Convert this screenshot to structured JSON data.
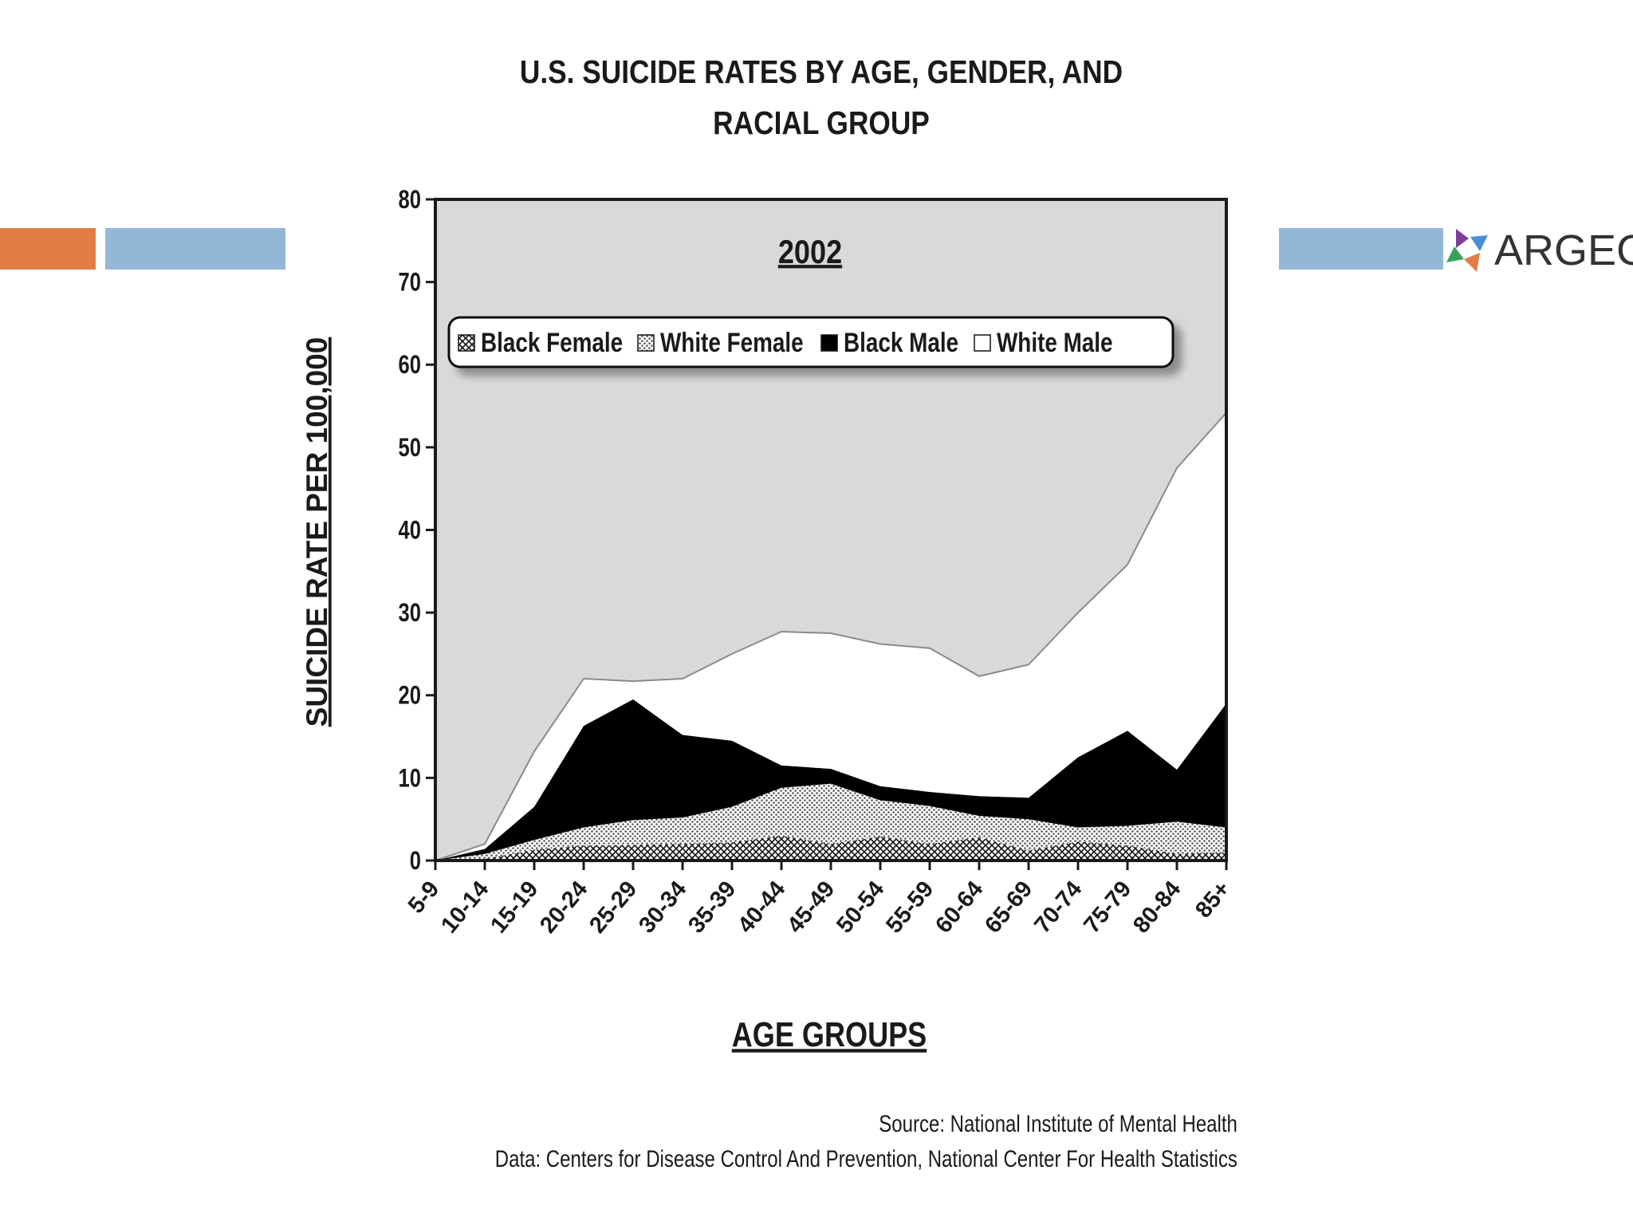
{
  "logo": {
    "text": "ARGEC",
    "icon": "argec-star-icon"
  },
  "colors": {
    "orange_bar": "#E07E45",
    "blue_bar": "#93B8D7",
    "plot_background": "#D9D9D9",
    "white_male": "#FFFFFF",
    "black_male": "#000000"
  },
  "source": {
    "line1": "Source: National Institute of Mental Health",
    "line2": "Data: Centers for Disease Control And Prevention, National Center For Health Statistics"
  },
  "chart_data": {
    "type": "area",
    "stacked": true,
    "title": "U.S. SUICIDE RATES BY AGE, GENDER, AND RACIAL GROUP",
    "subtitle": "2002",
    "xlabel": "AGE GROUPS",
    "ylabel": "SUICIDE RATE PER 100,000",
    "ylim": [
      0,
      80
    ],
    "yticks": [
      0,
      10,
      20,
      30,
      40,
      50,
      60,
      70,
      80
    ],
    "grid": false,
    "legend_position": "top",
    "categories": [
      "5-9",
      "10-14",
      "15-19",
      "20-24",
      "25-29",
      "30-34",
      "35-39",
      "40-44",
      "45-49",
      "50-54",
      "55-59",
      "60-64",
      "65-69",
      "70-74",
      "75-79",
      "80-84",
      "85+"
    ],
    "series": [
      {
        "name": "Black Female",
        "pattern": "cross-hatch",
        "values": [
          0,
          0.2,
          1.3,
          1.8,
          1.9,
          2.0,
          2.2,
          3.0,
          2.0,
          2.9,
          2.0,
          2.8,
          1.2,
          2.3,
          1.8,
          0.8,
          1.0
        ]
      },
      {
        "name": "White Female",
        "pattern": "dots",
        "values": [
          0,
          0.6,
          1.2,
          2.2,
          3.0,
          3.2,
          4.3,
          5.8,
          7.3,
          4.4,
          4.6,
          2.6,
          3.8,
          1.7,
          2.4,
          3.9,
          3.0
        ]
      },
      {
        "name": "Black Male",
        "pattern": "solid-black",
        "values": [
          0,
          0.6,
          4.0,
          12.3,
          14.6,
          10.0,
          8.0,
          2.7,
          1.8,
          1.7,
          1.7,
          2.4,
          2.6,
          8.5,
          11.5,
          6.3,
          15.0
        ]
      },
      {
        "name": "White Male",
        "pattern": "solid-white",
        "values": [
          0,
          0.6,
          6.7,
          5.7,
          2.2,
          6.8,
          10.5,
          16.2,
          16.4,
          17.2,
          17.4,
          14.5,
          16.1,
          17.5,
          20.1,
          36.5,
          35.2
        ]
      }
    ]
  }
}
